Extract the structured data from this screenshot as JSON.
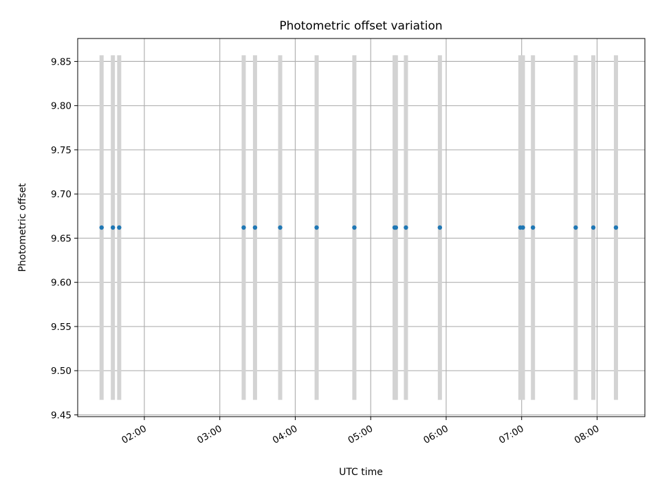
{
  "chart_data": {
    "type": "scatter",
    "title": "Photometric offset variation",
    "xlabel": "UTC time",
    "ylabel": "Photometric offset",
    "x_tick_labels": [
      "02:00",
      "03:00",
      "04:00",
      "05:00",
      "06:00",
      "07:00",
      "08:00"
    ],
    "y_tick_labels": [
      "9.45",
      "9.50",
      "9.55",
      "9.60",
      "9.65",
      "9.70",
      "9.75",
      "9.80",
      "9.85"
    ],
    "xlim": [
      "01:07",
      "08:38"
    ],
    "ylim": [
      9.448,
      9.876
    ],
    "grid": true,
    "error_bar_color": "#d3d3d3",
    "point_color": "#1f77b4",
    "series": [
      {
        "x": [
          "01:26",
          "01:35",
          "01:40",
          "03:19",
          "03:28",
          "03:48",
          "04:17",
          "04:47",
          "05:19",
          "05:20",
          "05:28",
          "05:55",
          "06:59",
          "07:01",
          "07:09",
          "07:43",
          "07:57",
          "08:15"
        ],
        "y": [
          9.662,
          9.662,
          9.662,
          9.662,
          9.662,
          9.662,
          9.662,
          9.662,
          9.662,
          9.662,
          9.662,
          9.662,
          9.662,
          9.662,
          9.662,
          9.662,
          9.662,
          9.662
        ],
        "y_err": [
          0.195,
          0.195,
          0.195,
          0.195,
          0.195,
          0.195,
          0.195,
          0.195,
          0.195,
          0.195,
          0.195,
          0.195,
          0.195,
          0.195,
          0.195,
          0.195,
          0.195,
          0.195
        ]
      }
    ]
  }
}
